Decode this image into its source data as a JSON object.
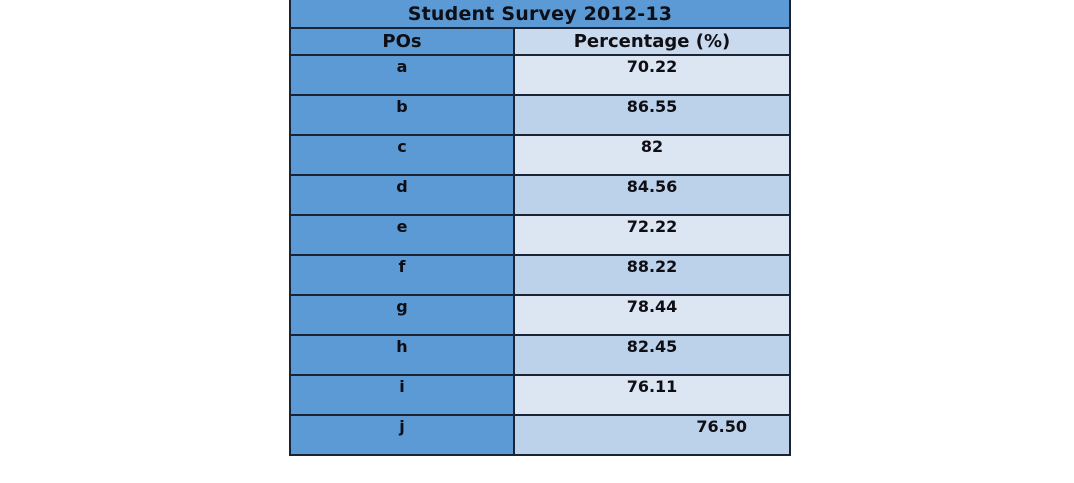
{
  "table": {
    "title": "Student Survey 2012-13",
    "columns": [
      "POs",
      "Percentage (%)"
    ],
    "rows": [
      {
        "po": "a",
        "pct": "70.22"
      },
      {
        "po": "b",
        "pct": "86.55"
      },
      {
        "po": "c",
        "pct": "82"
      },
      {
        "po": "d",
        "pct": "84.56"
      },
      {
        "po": "e",
        "pct": "72.22"
      },
      {
        "po": "f",
        "pct": "88.22"
      },
      {
        "po": "g",
        "pct": "78.44"
      },
      {
        "po": "h",
        "pct": "82.45"
      },
      {
        "po": "i",
        "pct": "76.11"
      },
      {
        "po": "j",
        "pct": "76.50"
      }
    ]
  },
  "colors": {
    "header_blue": "#5b9ad4",
    "header_light": "#c9daee",
    "row_light": "#dce6f2",
    "row_alt": "#bcd2ea",
    "border": "#1b2435",
    "text": "#0e0e14",
    "page_background": "#ffffff"
  },
  "chart_data": {
    "type": "table",
    "title": "Student Survey 2012-13",
    "columns": [
      "POs",
      "Percentage (%)"
    ],
    "categories": [
      "a",
      "b",
      "c",
      "d",
      "e",
      "f",
      "g",
      "h",
      "i",
      "j"
    ],
    "values": [
      70.22,
      86.55,
      82,
      84.56,
      72.22,
      88.22,
      78.44,
      82.45,
      76.11,
      76.5
    ],
    "value_range": [
      0,
      100
    ],
    "layout": "two-column table, blue theme, alternating light-blue value rows"
  }
}
